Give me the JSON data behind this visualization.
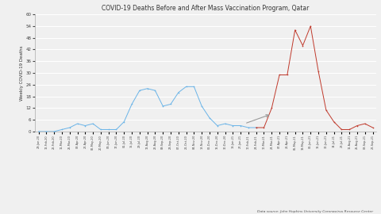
{
  "title": "COVID-19 Deaths Before and After Mass Vaccination Program, Qatar",
  "ylabel": "Weekly COVID-19 Deaths",
  "source": "Data source: John Hopkins University Coronavirus Resource Center",
  "ylim": [
    0,
    60
  ],
  "yticks": [
    0,
    6,
    12,
    18,
    24,
    30,
    36,
    42,
    48,
    54,
    60
  ],
  "blue_color": "#6ab4e8",
  "red_color": "#c0392b",
  "arrow_color": "#999999",
  "background_color": "#f0f0f0",
  "grid_color": "#ffffff",
  "dates_blue": [
    "29-Jan-20",
    "12-Feb-20",
    "26-Feb-20",
    "11-Mar-20",
    "25-Mar-20",
    "08-Apr-20",
    "22-Apr-20",
    "06-May-20",
    "20-May-20",
    "03-Jun-20",
    "17-Jun-20",
    "01-Jul-20",
    "15-Jul-20",
    "29-Jul-20",
    "12-Aug-20",
    "26-Aug-20",
    "09-Sep-20",
    "23-Sep-20",
    "07-Oct-20",
    "21-Oct-20",
    "04-Nov-20",
    "18-Nov-20",
    "02-Dec-20",
    "16-Dec-20",
    "30-Dec-20",
    "13-Jan-21",
    "27-Jan-21",
    "10-Feb-21",
    "24-Feb-21"
  ],
  "values_blue": [
    0,
    0,
    0,
    1,
    2,
    4,
    3,
    4,
    1,
    1,
    1,
    5,
    14,
    21,
    22,
    21,
    13,
    14,
    20,
    23,
    23,
    13,
    7,
    3,
    4,
    3,
    3,
    2,
    2
  ],
  "dates_red": [
    "24-Feb-21",
    "10-Mar-21",
    "24-Mar-21",
    "07-Apr-21",
    "21-Apr-21",
    "05-May-21",
    "19-May-21",
    "02-Jun-21",
    "16-Jun-21",
    "30-Jun-21",
    "14-Jul-21",
    "28-Jul-21",
    "11-Aug-21",
    "25-Aug-21",
    "08-Sep-21",
    "22-Sep-21"
  ],
  "values_red": [
    2,
    2,
    12,
    29,
    29,
    52,
    44,
    54,
    31,
    11,
    5,
    1,
    1,
    3,
    4,
    2
  ],
  "title_fontsize": 5.5,
  "ylabel_fontsize": 4.0,
  "ytick_fontsize": 4.0,
  "xtick_fontsize": 2.5,
  "source_fontsize": 3.2
}
